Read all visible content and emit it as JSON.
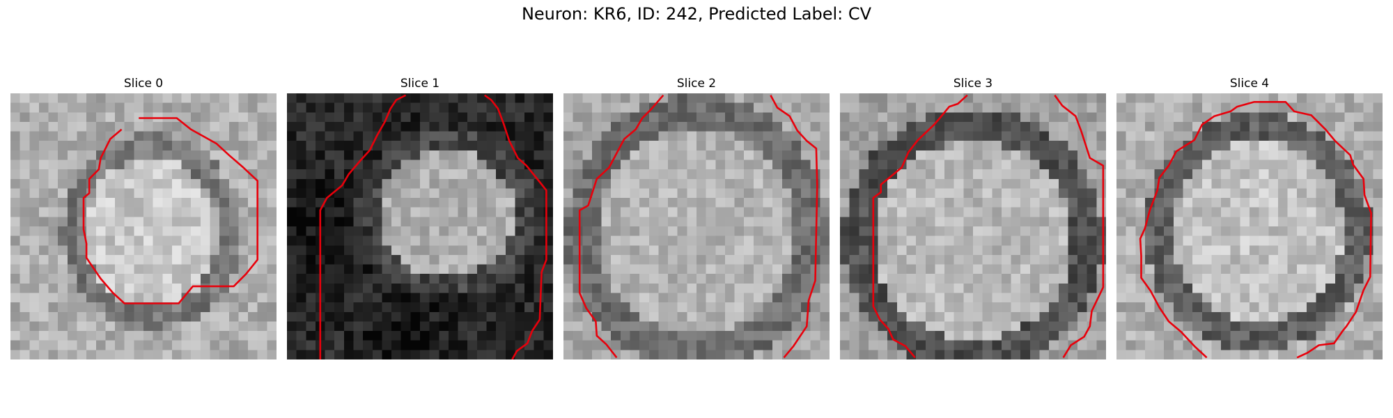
{
  "figure": {
    "title": "Neuron: KR6, ID: 242, Predicted Label: CV"
  },
  "colors": {
    "contour": "#e8000b",
    "background": "#ffffff"
  },
  "panels": [
    {
      "title": "Slice 0"
    },
    {
      "title": "Slice 1"
    },
    {
      "title": "Slice 2"
    },
    {
      "title": "Slice 3"
    },
    {
      "title": "Slice 4"
    }
  ]
}
